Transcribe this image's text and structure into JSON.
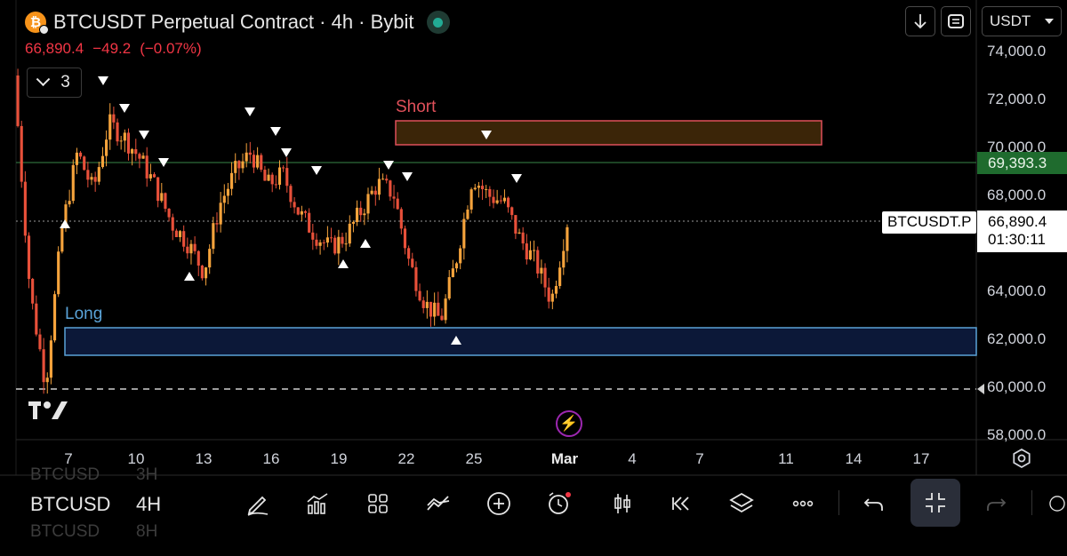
{
  "header": {
    "title": "BTCUSDT Perpetual Contract · 4h · Bybit",
    "coin_icon": "bitcoin-icon",
    "status_color": "#22ab94"
  },
  "quote": {
    "last": "66,890.4",
    "change": "−49.2",
    "change_pct": "(−0.07%)",
    "color": "#f23645"
  },
  "indicators_toggle": {
    "count": "3"
  },
  "toolbar_top": {
    "download_icon": "arrow-down-icon",
    "fullscreen_icon": "fullscreen-icon",
    "currency": "USDT"
  },
  "price_axis": {
    "ticks": [
      "74,000.0",
      "72,000.0",
      "70,000.0",
      "68,000.0",
      "64,000.0",
      "62,000.0",
      "60,000.0",
      "58,000.0"
    ],
    "green_tag": "69,393.3",
    "last_price": "66,890.4",
    "countdown": "01:30:11",
    "symbol_tag": "BTCUSDT.P"
  },
  "zones": {
    "short_label": "Short",
    "long_label": "Long",
    "short_color": "#e0505a",
    "long_color": "#5aa3d8"
  },
  "time_axis": {
    "labels": [
      "7",
      "10",
      "13",
      "16",
      "19",
      "22",
      "25",
      "Mar",
      "4",
      "7",
      "11",
      "14",
      "17"
    ]
  },
  "bottom_toolbar": {
    "symbol": "BTCUSD",
    "symbol_ghost_top": "BTCUSD",
    "symbol_ghost_bottom": "BTCUSD",
    "timeframe": "4H",
    "timeframe_ghost_top": "3H",
    "timeframe_ghost_bottom": "8H"
  },
  "chart_data": {
    "type": "candlestick",
    "symbol": "BTCUSDT.P",
    "interval": "4h",
    "price_range": [
      57800,
      75000
    ],
    "x_ticks": [
      "7",
      "10",
      "13",
      "16",
      "19",
      "22",
      "25",
      "Mar",
      "4",
      "7",
      "11",
      "14",
      "17"
    ],
    "close_path": [
      [
        1,
        73000
      ],
      [
        2,
        64000
      ],
      [
        3,
        60100
      ],
      [
        4,
        66500
      ],
      [
        5,
        69800
      ],
      [
        6,
        68200
      ],
      [
        7,
        71000
      ],
      [
        8,
        70400
      ],
      [
        9,
        69500
      ],
      [
        10,
        68300
      ],
      [
        11,
        66800
      ],
      [
        12,
        66000
      ],
      [
        13,
        64800
      ],
      [
        14,
        67600
      ],
      [
        15,
        69000
      ],
      [
        16,
        69800
      ],
      [
        17,
        68400
      ],
      [
        18,
        68900
      ],
      [
        19,
        67300
      ],
      [
        20,
        66400
      ],
      [
        21,
        65800
      ],
      [
        22,
        66300
      ],
      [
        23,
        67400
      ],
      [
        24,
        68500
      ],
      [
        25,
        68100
      ],
      [
        26,
        65200
      ],
      [
        27,
        63500
      ],
      [
        28,
        62800
      ],
      [
        29,
        65400
      ],
      [
        30,
        68800
      ],
      [
        31,
        68000
      ],
      [
        32,
        67700
      ],
      [
        33,
        66200
      ],
      [
        34,
        65200
      ],
      [
        35,
        63600
      ],
      [
        36,
        66900
      ]
    ],
    "reference_levels": {
      "green_line": 69393.3,
      "last_price": 66890.4,
      "dashed_support": 60000
    },
    "short_zone": [
      70050,
      71100
    ],
    "long_zone": [
      61300,
      62500
    ],
    "swing_highs_marked": 13,
    "swing_lows_marked": 6
  }
}
